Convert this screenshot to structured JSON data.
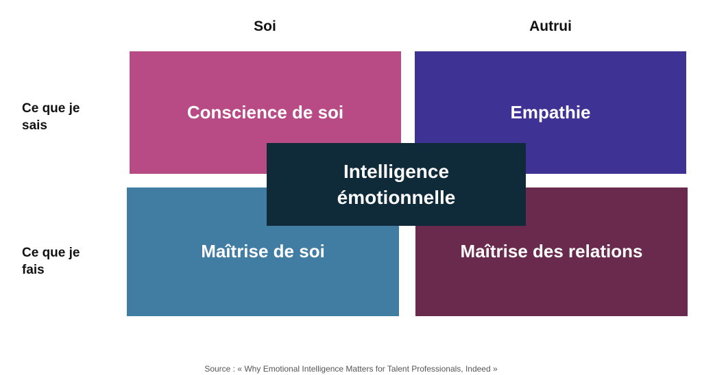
{
  "columns": {
    "self": "Soi",
    "others": "Autrui"
  },
  "rows": {
    "know_line1": "Ce que je",
    "know_line2": "sais",
    "do_line1": "Ce que je",
    "do_line2": "fais"
  },
  "quadrants": {
    "top_left": "Conscience de soi",
    "top_right": "Empathie",
    "bottom_left": "Maîtrise de soi",
    "bottom_right": "Maîtrise des relations"
  },
  "center": {
    "line1": "Intelligence",
    "line2": "émotionnelle"
  },
  "source": "Source : « Why Emotional Intelligence Matters for Talent Professionals, Indeed »",
  "colors": {
    "top_left": "#b84b85",
    "top_right": "#3f3295",
    "bottom_left": "#417ca2",
    "bottom_right": "#692a4e",
    "center": "#0f2a39"
  }
}
